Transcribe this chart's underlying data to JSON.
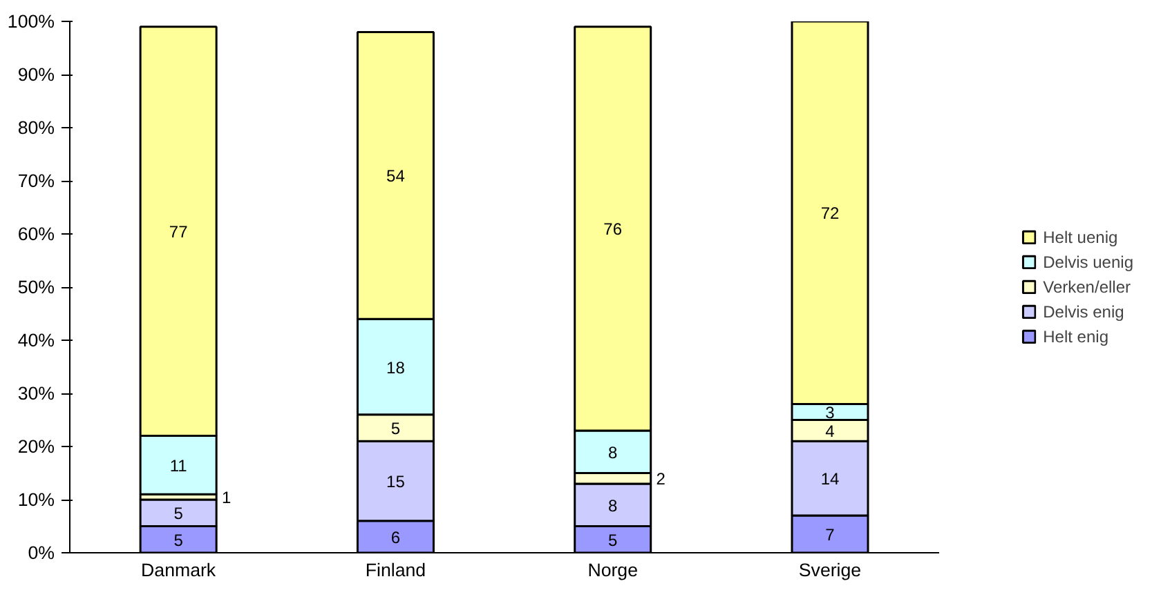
{
  "chart_data": {
    "type": "bar",
    "stacked": true,
    "categories": [
      "Danmark",
      "Finland",
      "Norge",
      "Sverige"
    ],
    "series": [
      {
        "name": "Helt enig",
        "color": "#9999ff",
        "values": [
          5,
          6,
          5,
          7
        ]
      },
      {
        "name": "Delvis enig",
        "color": "#ccccff",
        "values": [
          5,
          15,
          8,
          14
        ]
      },
      {
        "name": "Verken/eller",
        "color": "#ffffcc",
        "values": [
          1,
          5,
          2,
          4
        ]
      },
      {
        "name": "Delvis uenig",
        "color": "#ccffff",
        "values": [
          11,
          18,
          8,
          3
        ]
      },
      {
        "name": "Helt uenig",
        "color": "#ffff99",
        "values": [
          77,
          54,
          76,
          72
        ]
      }
    ],
    "data_labels": true,
    "ylim": [
      0,
      100
    ],
    "yticks": [
      {
        "value": 0,
        "label": "0%"
      },
      {
        "value": 10,
        "label": "10%"
      },
      {
        "value": 20,
        "label": "20%"
      },
      {
        "value": 30,
        "label": "30%"
      },
      {
        "value": 40,
        "label": "40%"
      },
      {
        "value": 50,
        "label": "50%"
      },
      {
        "value": 60,
        "label": "60%"
      },
      {
        "value": 70,
        "label": "70%"
      },
      {
        "value": 80,
        "label": "80%"
      },
      {
        "value": 90,
        "label": "90%"
      },
      {
        "value": 100,
        "label": "100%"
      }
    ],
    "grid": false,
    "legend": "right"
  }
}
